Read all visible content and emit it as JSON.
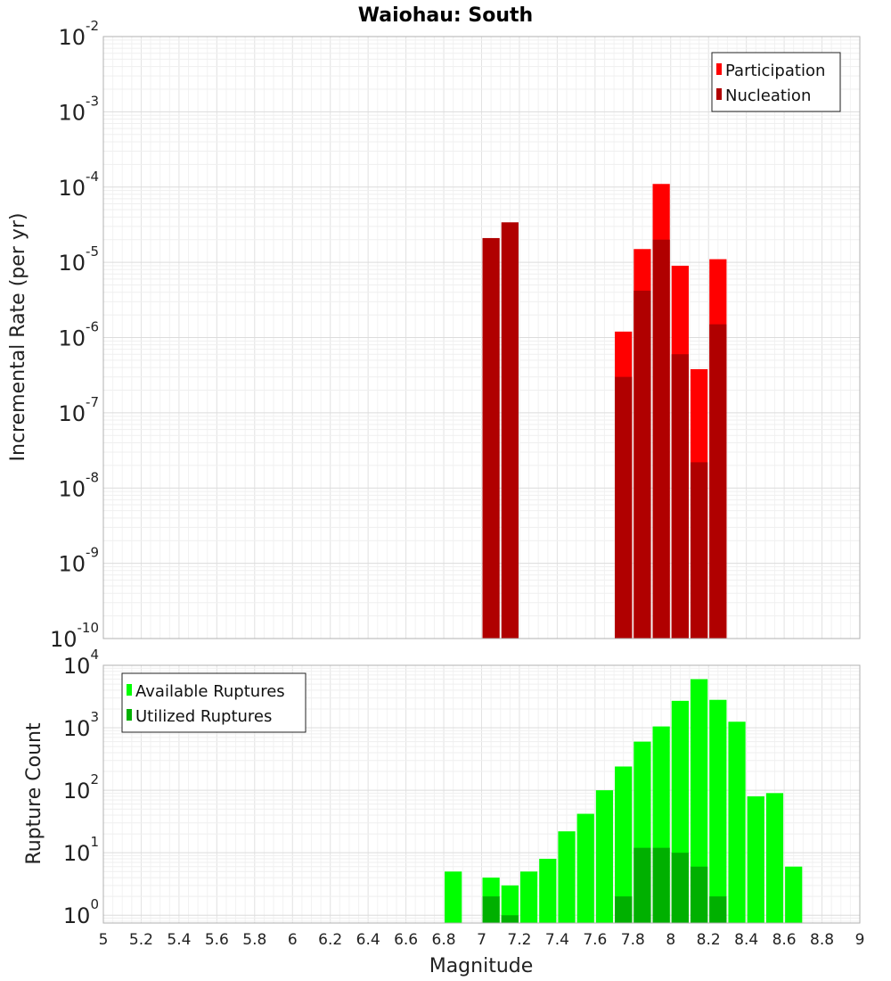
{
  "chart_data": [
    {
      "type": "bar",
      "title": "Waiohau: South",
      "ylabel": "Incremental Rate (per yr)",
      "xlabel": "",
      "x_range": [
        5,
        9
      ],
      "y_scale": "log",
      "ylim": [
        1e-10,
        0.01
      ],
      "y_tick_exponents": [
        -10,
        -9,
        -8,
        -7,
        -6,
        -5,
        -4,
        -3,
        -2
      ],
      "grid": true,
      "bar_width": 0.1,
      "legend": {
        "placement": "top-right",
        "entries": [
          "Participation",
          "Nucleation"
        ]
      },
      "colors": {
        "Participation": "#ff0000",
        "Nucleation": "#b00000"
      },
      "series": [
        {
          "name": "Participation",
          "x": [
            7.75,
            7.85,
            7.95,
            8.05,
            8.15,
            8.25
          ],
          "values": [
            1.2e-06,
            1.5e-05,
            0.00011,
            9e-06,
            3.8e-07,
            1.1e-05
          ]
        },
        {
          "name": "Nucleation",
          "x": [
            7.05,
            7.15,
            7.75,
            7.85,
            7.95,
            8.05,
            8.15,
            8.25
          ],
          "values": [
            2.1e-05,
            3.4e-05,
            3e-07,
            4.2e-06,
            2e-05,
            6e-07,
            2.2e-08,
            1.5e-06
          ]
        }
      ]
    },
    {
      "type": "bar",
      "title": "",
      "ylabel": "Rupture Count",
      "xlabel": "Magnitude",
      "x_range": [
        5,
        9
      ],
      "x_ticks": [
        "5",
        "5.2",
        "5.4",
        "5.6",
        "5.8",
        "6",
        "6.2",
        "6.4",
        "6.6",
        "6.8",
        "7",
        "7.2",
        "7.4",
        "7.6",
        "7.8",
        "8",
        "8.2",
        "8.4",
        "8.6",
        "8.8",
        "9"
      ],
      "y_scale": "log",
      "ylim": [
        0.75,
        10000
      ],
      "y_tick_exponents": [
        0,
        1,
        2,
        3,
        4
      ],
      "grid": true,
      "bar_width": 0.1,
      "legend": {
        "placement": "top-left",
        "entries": [
          "Available Ruptures",
          "Utilized Ruptures"
        ]
      },
      "colors": {
        "Available Ruptures": "#00ff00",
        "Utilized Ruptures": "#00b000"
      },
      "series": [
        {
          "name": "Available Ruptures",
          "x": [
            6.85,
            7.05,
            7.15,
            7.25,
            7.35,
            7.45,
            7.55,
            7.65,
            7.75,
            7.85,
            7.95,
            8.05,
            8.15,
            8.25,
            8.35,
            8.45,
            8.55,
            8.65
          ],
          "values": [
            5,
            4,
            3,
            5,
            8,
            22,
            42,
            100,
            240,
            600,
            1050,
            2700,
            6000,
            2800,
            1250,
            80,
            90,
            6
          ]
        },
        {
          "name": "Utilized Ruptures",
          "x": [
            7.05,
            7.15,
            7.75,
            7.85,
            7.95,
            8.05,
            8.15,
            8.25
          ],
          "values": [
            2,
            1,
            2,
            12,
            12,
            10,
            6,
            2
          ]
        }
      ]
    }
  ]
}
